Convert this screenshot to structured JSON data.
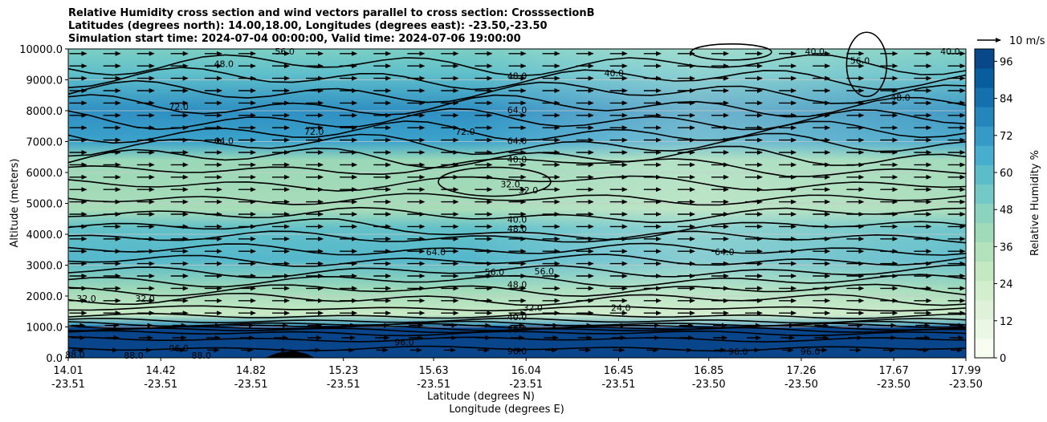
{
  "chart_data": {
    "type": "contour",
    "title_lines": [
      "Relative Humidity cross section and wind vectors parallel to cross section: CrosssectionB",
      "Latitudes (degrees north): 14.00,18.00, Longitudes (degrees east): -23.50,-23.50",
      "Simulation start time: 2024-07-04 00:00:00, Valid time: 2024-07-06 19:00:00"
    ],
    "ylabel": "Altitude (meters)",
    "xlabel_lat": "Latitude (degrees N)",
    "xlabel_lon": "Longitude (degrees E)",
    "ylim": [
      0,
      10000
    ],
    "y_ticks": [
      "0.0",
      "1000.0",
      "2000.0",
      "3000.0",
      "4000.0",
      "5000.0",
      "6000.0",
      "7000.0",
      "8000.0",
      "9000.0",
      "10000.0"
    ],
    "x_range": [
      14.01,
      17.99
    ],
    "x_ticks": [
      {
        "lat": "14.01",
        "lon": "-23.51"
      },
      {
        "lat": "14.42",
        "lon": "-23.51"
      },
      {
        "lat": "14.82",
        "lon": "-23.51"
      },
      {
        "lat": "15.23",
        "lon": "-23.51"
      },
      {
        "lat": "15.63",
        "lon": "-23.51"
      },
      {
        "lat": "16.04",
        "lon": "-23.51"
      },
      {
        "lat": "16.45",
        "lon": "-23.51"
      },
      {
        "lat": "16.85",
        "lon": "-23.50"
      },
      {
        "lat": "17.26",
        "lon": "-23.50"
      },
      {
        "lat": "17.67",
        "lon": "-23.50"
      },
      {
        "lat": "17.99",
        "lon": "-23.50"
      }
    ],
    "colorbar": {
      "label": "Relative Humidity %",
      "ticks": [
        "0",
        "12",
        "24",
        "36",
        "48",
        "60",
        "72",
        "84",
        "96"
      ],
      "range": [
        0,
        100
      ],
      "colors": [
        "#f7fcf0",
        "#eaf7e4",
        "#dff2d9",
        "#d3eecd",
        "#c4e8c2",
        "#b3e1bc",
        "#a1dab8",
        "#8bd2bf",
        "#74c8c5",
        "#5dbcca",
        "#48aecf",
        "#359bc6",
        "#2586bb",
        "#1571ae",
        "#085d9e",
        "#08488a"
      ]
    },
    "contour_labels": [
      {
        "text": "48.0",
        "x": 14.7,
        "y": 9500
      },
      {
        "text": "56.0",
        "x": 14.97,
        "y": 9900
      },
      {
        "text": "72.0",
        "x": 14.5,
        "y": 8100
      },
      {
        "text": "64.0",
        "x": 14.7,
        "y": 7000
      },
      {
        "text": "72.0",
        "x": 15.1,
        "y": 7300
      },
      {
        "text": "72.0",
        "x": 15.77,
        "y": 7300
      },
      {
        "text": "48.0",
        "x": 16.0,
        "y": 9100
      },
      {
        "text": "40.0",
        "x": 16.43,
        "y": 9200
      },
      {
        "text": "64.0",
        "x": 16.0,
        "y": 8000
      },
      {
        "text": "64.0",
        "x": 16.0,
        "y": 7000
      },
      {
        "text": "40.0",
        "x": 16.0,
        "y": 6400
      },
      {
        "text": "32.0",
        "x": 15.97,
        "y": 5600
      },
      {
        "text": "32.0",
        "x": 16.05,
        "y": 5400
      },
      {
        "text": "40.0",
        "x": 16.0,
        "y": 4450
      },
      {
        "text": "48.0",
        "x": 16.0,
        "y": 4150
      },
      {
        "text": "64.0",
        "x": 15.64,
        "y": 3400
      },
      {
        "text": "56.0",
        "x": 15.9,
        "y": 2750
      },
      {
        "text": "56.0",
        "x": 16.12,
        "y": 2780
      },
      {
        "text": "48.0",
        "x": 16.0,
        "y": 2350
      },
      {
        "text": "64.0",
        "x": 16.92,
        "y": 3400
      },
      {
        "text": "24.0",
        "x": 16.46,
        "y": 1600
      },
      {
        "text": "32.0",
        "x": 14.09,
        "y": 1900
      },
      {
        "text": "32.0",
        "x": 14.35,
        "y": 1900
      },
      {
        "text": "32.0",
        "x": 16.07,
        "y": 1600
      },
      {
        "text": "96.0",
        "x": 16.0,
        "y": 200
      },
      {
        "text": "96.0",
        "x": 14.5,
        "y": 280
      },
      {
        "text": "96.0",
        "x": 15.5,
        "y": 480
      },
      {
        "text": "88.0",
        "x": 14.04,
        "y": 80
      },
      {
        "text": "88.0",
        "x": 14.3,
        "y": 50
      },
      {
        "text": "88.0",
        "x": 14.6,
        "y": 50
      },
      {
        "text": "96.0",
        "x": 16.98,
        "y": 180
      },
      {
        "text": "96.0",
        "x": 17.3,
        "y": 180
      },
      {
        "text": "56.0",
        "x": 17.52,
        "y": 9600
      },
      {
        "text": "48.0",
        "x": 17.7,
        "y": 8400
      },
      {
        "text": "40.0",
        "x": 17.32,
        "y": 9900
      },
      {
        "text": "40.0",
        "x": 17.92,
        "y": 9900
      },
      {
        "text": "40.0",
        "x": 16.0,
        "y": 1300
      },
      {
        "text": "88.0",
        "x": 16.0,
        "y": 900
      }
    ],
    "wind": {
      "reference_label": "10 m/s",
      "direction": "east"
    }
  }
}
